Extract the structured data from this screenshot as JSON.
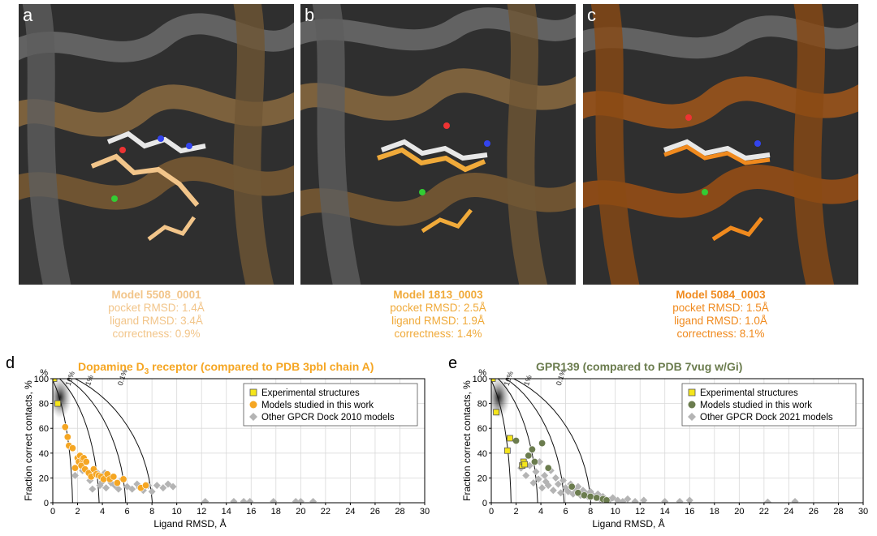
{
  "panels": [
    {
      "letter": "a",
      "model": "Model 5508_0001",
      "pocket": "pocket RMSD: 1.4Å",
      "ligand": "ligand RMSD: 3.4Å",
      "correctness": "correctness: 0.9%",
      "color": "#f2c58a"
    },
    {
      "letter": "b",
      "model": "Model 1813_0003",
      "pocket": "pocket RMSD: 2.5Å",
      "ligand": "ligand RMSD: 1.9Å",
      "correctness": "correctness: 1.4%",
      "color": "#f0aa3a"
    },
    {
      "letter": "c",
      "model": "Model 5084_0003",
      "pocket": "pocket RMSD: 1.5Å",
      "ligand": "ligand RMSD: 1.0Å",
      "correctness": "correctness: 8.1%",
      "color": "#f08a1e"
    }
  ],
  "plot_d": {
    "letter": "d",
    "title_main": "Dopamine D",
    "title_sub": "3",
    "title_rest": " receptor (compared to PDB 3pbl chain A)",
    "title_color": "#f5a623"
  },
  "plot_e": {
    "letter": "e",
    "title": "GPR139 (compared to PDB 7vug w/Gi)",
    "title_color": "#6b7c4e"
  },
  "chart_data": [
    {
      "type": "scatter",
      "xlabel": "Ligand RMSD, Å",
      "ylabel": "Fraction correct contacts, %",
      "xlim": [
        0,
        30
      ],
      "ylim": [
        0,
        100
      ],
      "xticks": [
        0,
        2,
        4,
        6,
        8,
        10,
        12,
        14,
        16,
        18,
        20,
        22,
        24,
        26,
        28,
        30
      ],
      "yticks": [
        0,
        20,
        40,
        60,
        80,
        100
      ],
      "grid": true,
      "legend_position": "top-right",
      "contour_labels": [
        "10%",
        "1%",
        "0.1%"
      ],
      "series": [
        {
          "name": "Experimental structures",
          "marker": "square",
          "color": "#f5e51b",
          "x": [
            0.1,
            0.4
          ],
          "y": [
            100,
            80
          ]
        },
        {
          "name": "Models studied in this work",
          "marker": "circle",
          "color": "#f5a623",
          "x": [
            1.0,
            1.2,
            1.3,
            1.6,
            1.8,
            2.0,
            2.1,
            2.2,
            2.3,
            2.4,
            2.5,
            2.6,
            2.7,
            2.9,
            3.1,
            3.3,
            3.5,
            3.7,
            3.9,
            4.1,
            4.4,
            4.6,
            4.9,
            5.2,
            5.7,
            7.1,
            7.5
          ],
          "y": [
            61,
            53,
            46,
            44,
            28,
            36,
            33,
            38,
            30,
            35,
            36,
            27,
            33,
            24,
            21,
            27,
            23,
            22,
            21,
            19,
            23,
            19,
            21,
            16,
            19,
            12,
            14
          ]
        },
        {
          "name": "Other GPCR Dock 2010 models",
          "marker": "diamond",
          "color": "#b4b4b4",
          "x": [
            1.8,
            2.4,
            3.0,
            3.2,
            3.6,
            3.8,
            4.0,
            4.2,
            4.3,
            4.5,
            4.7,
            5.0,
            5.3,
            5.6,
            6.0,
            6.4,
            6.8,
            7.0,
            7.3,
            7.7,
            8.0,
            8.4,
            8.9,
            9.3,
            9.7,
            12.3,
            14.6,
            15.4,
            15.9,
            17.8,
            19.6,
            20.0,
            21.0
          ],
          "y": [
            22,
            26,
            18,
            11,
            24,
            14,
            17,
            24,
            12,
            22,
            16,
            14,
            11,
            19,
            13,
            11,
            15,
            12,
            10,
            14,
            9,
            14,
            12,
            15,
            13,
            1,
            1,
            1,
            1,
            1,
            1,
            1,
            1
          ]
        }
      ]
    },
    {
      "type": "scatter",
      "xlabel": "Ligand RMSD, Å",
      "ylabel": "Fraction correct contacts, %",
      "xlim": [
        0,
        30
      ],
      "ylim": [
        0,
        100
      ],
      "xticks": [
        0,
        2,
        4,
        6,
        8,
        10,
        12,
        14,
        16,
        18,
        20,
        22,
        24,
        26,
        28,
        30
      ],
      "yticks": [
        0,
        20,
        40,
        60,
        80,
        100
      ],
      "grid": true,
      "legend_position": "top-right",
      "contour_labels": [
        "10%",
        "1%",
        "0.1%"
      ],
      "series": [
        {
          "name": "Experimental structures",
          "marker": "square",
          "color": "#f5e51b",
          "x": [
            0.1,
            0.4,
            1.3,
            1.5,
            2.5,
            2.6,
            2.7
          ],
          "y": [
            100,
            73,
            42,
            52,
            30,
            33,
            31
          ]
        },
        {
          "name": "Models studied in this work",
          "marker": "circle",
          "color": "#6b7c4e",
          "x": [
            2.0,
            3.0,
            3.3,
            3.5,
            4.1,
            4.6,
            6.5,
            7.0,
            7.5,
            8.0,
            8.5,
            9.0,
            9.3
          ],
          "y": [
            50,
            38,
            43,
            33,
            48,
            28,
            13,
            8,
            6,
            5,
            4,
            3,
            2
          ]
        },
        {
          "name": "Other GPCR Dock 2021 models",
          "marker": "diamond",
          "color": "#b4b4b4",
          "x": [
            2.4,
            2.8,
            3.1,
            3.4,
            3.6,
            3.8,
            3.9,
            4.1,
            4.3,
            4.4,
            4.6,
            4.8,
            5.0,
            5.2,
            5.4,
            5.6,
            5.8,
            6.0,
            6.2,
            6.4,
            6.6,
            6.8,
            7.0,
            7.2,
            7.4,
            7.6,
            7.8,
            8.0,
            8.2,
            8.4,
            8.6,
            8.8,
            9.0,
            9.2,
            9.5,
            9.8,
            10.2,
            10.6,
            11.0,
            11.6,
            12.3,
            14.0,
            15.2,
            16.0,
            22.3,
            24.5
          ],
          "y": [
            28,
            22,
            30,
            16,
            25,
            19,
            33,
            12,
            22,
            17,
            14,
            26,
            10,
            20,
            15,
            8,
            18,
            12,
            9,
            15,
            7,
            11,
            13,
            6,
            10,
            8,
            5,
            9,
            6,
            4,
            7,
            3,
            5,
            3,
            2,
            4,
            2,
            1,
            3,
            1,
            2,
            1,
            1,
            2,
            0.5,
            1
          ]
        }
      ]
    }
  ]
}
